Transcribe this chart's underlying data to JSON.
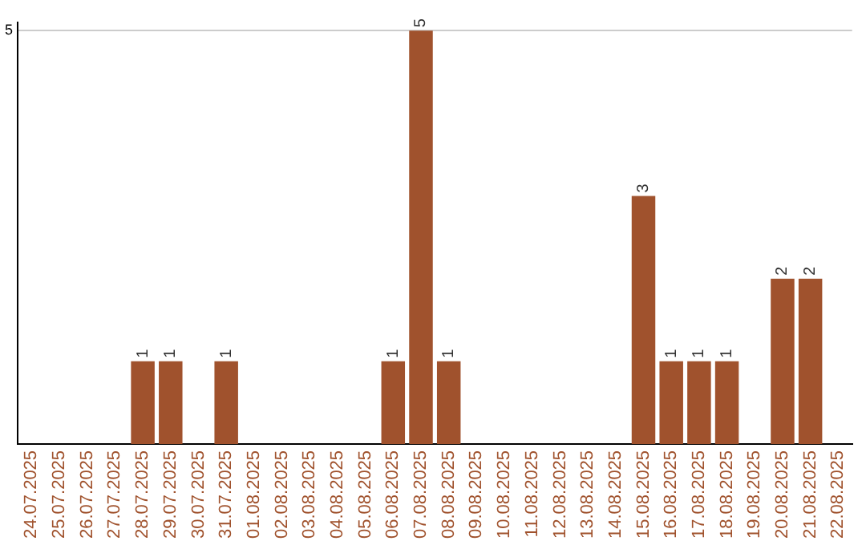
{
  "chart_data": {
    "type": "bar",
    "categories": [
      "24.07.2025",
      "25.07.2025",
      "26.07.2025",
      "27.07.2025",
      "28.07.2025",
      "29.07.2025",
      "30.07.2025",
      "31.07.2025",
      "01.08.2025",
      "02.08.2025",
      "03.08.2025",
      "04.08.2025",
      "05.08.2025",
      "06.08.2025",
      "07.08.2025",
      "08.08.2025",
      "09.08.2025",
      "10.08.2025",
      "11.08.2025",
      "12.08.2025",
      "13.08.2025",
      "14.08.2025",
      "15.08.2025",
      "16.08.2025",
      "17.08.2025",
      "18.08.2025",
      "19.08.2025",
      "20.08.2025",
      "21.08.2025",
      "22.08.2025"
    ],
    "values": [
      null,
      null,
      null,
      null,
      1,
      1,
      null,
      1,
      null,
      null,
      null,
      null,
      null,
      1,
      5,
      1,
      null,
      null,
      null,
      null,
      null,
      null,
      3,
      1,
      1,
      1,
      null,
      2,
      2,
      null
    ],
    "color": "#a0522d",
    "ylim": [
      0,
      5.1
    ],
    "yticks": [
      5
    ],
    "grid": "y",
    "legend": false,
    "data_labels": true
  }
}
